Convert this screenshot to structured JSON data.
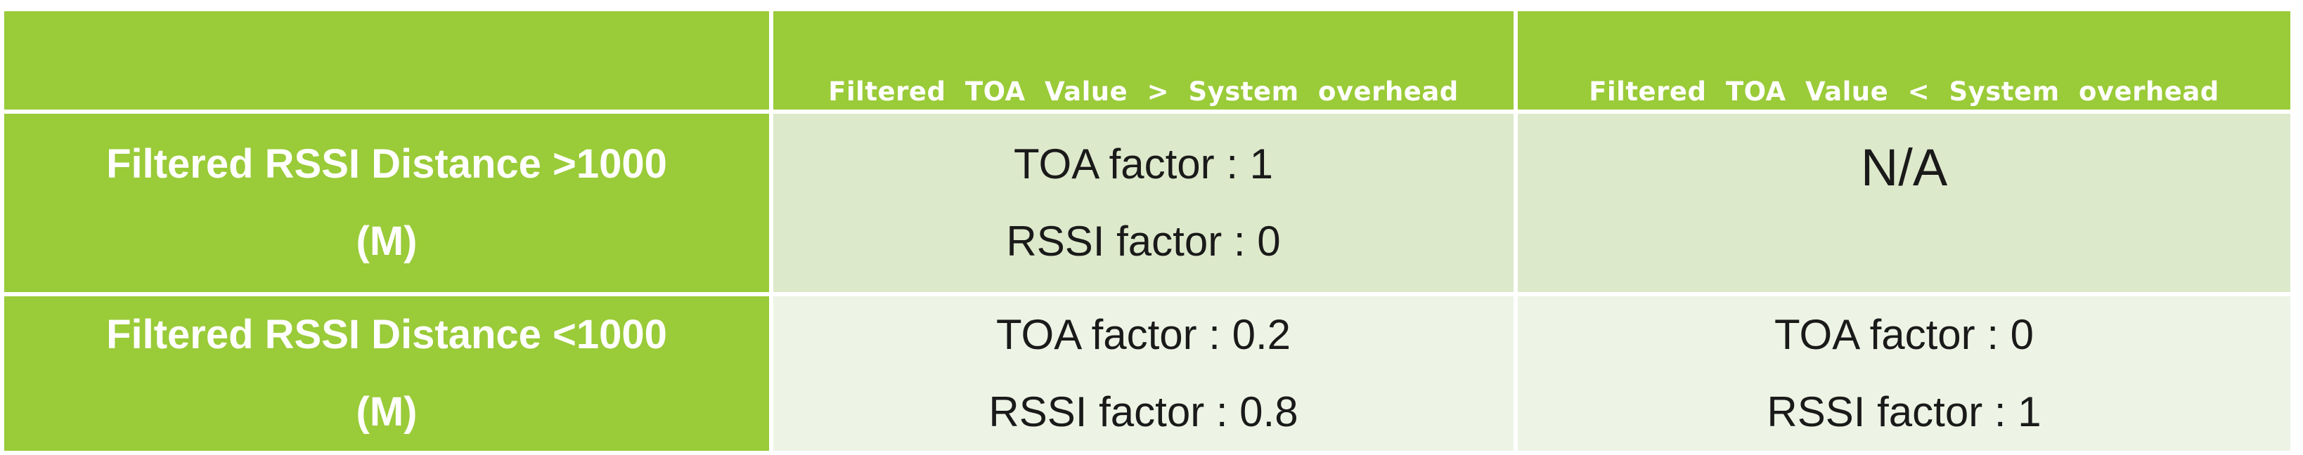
{
  "header": {
    "corner": "",
    "col1": "Filtered TOA Value > System overhead",
    "col2": "Filtered TOA Value < System overhead"
  },
  "rows": [
    {
      "label_line1": "Filtered RSSI Distance >1000",
      "label_line2": "(M)",
      "col1": {
        "toa": "TOA factor : 1",
        "rssi": "RSSI factor : 0"
      },
      "col2": {
        "text": "N/A"
      }
    },
    {
      "label_line1": "Filtered RSSI Distance <1000",
      "label_line2": "(M)",
      "col1": {
        "toa": "TOA factor : 0.2",
        "rssi": "RSSI factor : 0.8"
      },
      "col2": {
        "toa": "TOA factor : 0",
        "rssi": "RSSI factor : 1"
      }
    }
  ],
  "colors": {
    "header_bg": "#9acb38",
    "row1_bg": "#dde9cb",
    "row2_bg": "#eef4e5",
    "border": "#ffffff"
  }
}
